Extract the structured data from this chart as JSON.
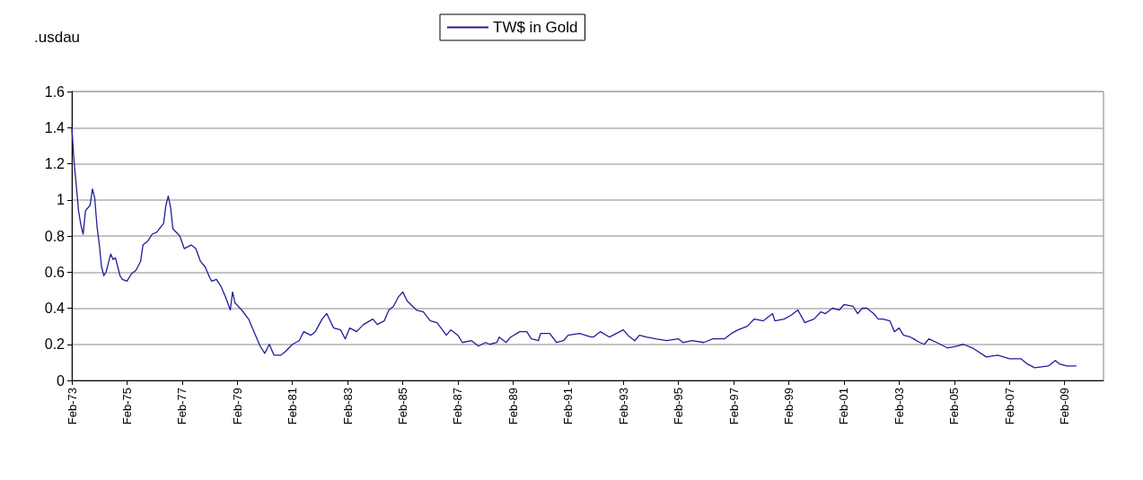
{
  "chart_data": {
    "type": "line",
    "ylabel": ".usdau",
    "legend": "top",
    "grid": "y",
    "marker": "none",
    "line_style": "solid",
    "xlim": [
      "1973-02",
      "2010-07"
    ],
    "xticks": [
      {
        "value": "1973-02",
        "label": "Feb-73"
      },
      {
        "value": "1975-02",
        "label": "Feb-75"
      },
      {
        "value": "1977-02",
        "label": "Feb-77"
      },
      {
        "value": "1979-02",
        "label": "Feb-79"
      },
      {
        "value": "1981-02",
        "label": "Feb-81"
      },
      {
        "value": "1983-02",
        "label": "Feb-83"
      },
      {
        "value": "1985-02",
        "label": "Feb-85"
      },
      {
        "value": "1987-02",
        "label": "Feb-87"
      },
      {
        "value": "1989-02",
        "label": "Feb-89"
      },
      {
        "value": "1991-02",
        "label": "Feb-91"
      },
      {
        "value": "1993-02",
        "label": "Feb-93"
      },
      {
        "value": "1995-02",
        "label": "Feb-95"
      },
      {
        "value": "1997-02",
        "label": "Feb-97"
      },
      {
        "value": "1999-02",
        "label": "Feb-99"
      },
      {
        "value": "2001-02",
        "label": "Feb-01"
      },
      {
        "value": "2003-02",
        "label": "Feb-03"
      },
      {
        "value": "2005-02",
        "label": "Feb-05"
      },
      {
        "value": "2007-02",
        "label": "Feb-07"
      },
      {
        "value": "2009-02",
        "label": "Feb-09"
      }
    ],
    "ylim": [
      0,
      1.6
    ],
    "yticks": [
      0,
      0.2,
      0.4,
      0.6,
      0.8,
      1,
      1.2,
      1.4,
      1.6
    ],
    "series": [
      {
        "name": "TW$ in Gold",
        "color": "#1f1f99",
        "x": [
          "1973-02",
          "1973-03",
          "1973-04",
          "1973-05",
          "1973-06",
          "1973-07",
          "1973-08",
          "1973-10",
          "1973-11",
          "1973-12",
          "1974-01",
          "1974-02",
          "1974-03",
          "1974-04",
          "1974-05",
          "1974-07",
          "1974-08",
          "1974-09",
          "1974-11",
          "1974-12",
          "1975-02",
          "1975-04",
          "1975-06",
          "1975-08",
          "1975-09",
          "1975-11",
          "1976-01",
          "1976-03",
          "1976-06",
          "1976-07",
          "1976-08",
          "1976-09",
          "1976-10",
          "1977-01",
          "1977-03",
          "1977-06",
          "1977-08",
          "1977-10",
          "1977-12",
          "1978-02",
          "1978-03",
          "1978-05",
          "1978-07",
          "1978-09",
          "1978-11",
          "1978-12",
          "1979-01",
          "1979-04",
          "1979-07",
          "1979-10",
          "1979-12",
          "1980-02",
          "1980-04",
          "1980-06",
          "1980-09",
          "1980-11",
          "1981-02",
          "1981-05",
          "1981-07",
          "1981-10",
          "1981-12",
          "1982-03",
          "1982-05",
          "1982-08",
          "1982-11",
          "1983-01",
          "1983-03",
          "1983-06",
          "1983-09",
          "1984-01",
          "1984-03",
          "1984-06",
          "1984-08",
          "1984-10",
          "1984-12",
          "1985-02",
          "1985-04",
          "1985-08",
          "1985-11",
          "1986-02",
          "1986-05",
          "1986-09",
          "1986-11",
          "1987-02",
          "1987-04",
          "1987-08",
          "1987-11",
          "1988-02",
          "1988-04",
          "1988-07",
          "1988-08",
          "1988-11",
          "1989-01",
          "1989-05",
          "1989-08",
          "1989-10",
          "1990-01",
          "1990-02",
          "1990-06",
          "1990-09",
          "1990-12",
          "1991-02",
          "1991-07",
          "1991-12",
          "1992-01",
          "1992-04",
          "1992-08",
          "1993-02",
          "1993-04",
          "1993-07",
          "1993-09",
          "1993-12",
          "1994-04",
          "1994-09",
          "1995-02",
          "1995-04",
          "1995-08",
          "1996-01",
          "1996-05",
          "1996-10",
          "1997-01",
          "1997-04",
          "1997-08",
          "1997-11",
          "1998-03",
          "1998-07",
          "1998-08",
          "1998-12",
          "1999-03",
          "1999-06",
          "1999-09",
          "2000-01",
          "2000-04",
          "2000-06",
          "2000-09",
          "2000-12",
          "2001-02",
          "2001-06",
          "2001-08",
          "2001-10",
          "2001-12",
          "2002-03",
          "2002-05",
          "2002-07",
          "2002-10",
          "2002-12",
          "2003-02",
          "2003-04",
          "2003-07",
          "2003-11",
          "2004-01",
          "2004-03",
          "2004-08",
          "2004-11",
          "2005-03",
          "2005-06",
          "2005-10",
          "2006-04",
          "2006-09",
          "2007-02",
          "2007-07",
          "2007-10",
          "2008-01",
          "2008-07",
          "2008-10",
          "2008-12",
          "2009-03",
          "2009-07"
        ],
        "values": [
          1.4,
          1.22,
          1.08,
          0.94,
          0.86,
          0.81,
          0.94,
          0.97,
          1.06,
          1.01,
          0.85,
          0.75,
          0.63,
          0.58,
          0.6,
          0.7,
          0.67,
          0.68,
          0.58,
          0.56,
          0.55,
          0.59,
          0.61,
          0.66,
          0.75,
          0.77,
          0.81,
          0.82,
          0.87,
          0.97,
          1.02,
          0.96,
          0.84,
          0.8,
          0.73,
          0.75,
          0.73,
          0.66,
          0.63,
          0.57,
          0.55,
          0.56,
          0.52,
          0.46,
          0.39,
          0.49,
          0.43,
          0.39,
          0.34,
          0.25,
          0.19,
          0.15,
          0.2,
          0.14,
          0.14,
          0.16,
          0.2,
          0.22,
          0.27,
          0.25,
          0.27,
          0.34,
          0.37,
          0.29,
          0.28,
          0.23,
          0.29,
          0.27,
          0.31,
          0.34,
          0.31,
          0.33,
          0.39,
          0.41,
          0.46,
          0.49,
          0.44,
          0.39,
          0.38,
          0.33,
          0.32,
          0.25,
          0.28,
          0.25,
          0.21,
          0.22,
          0.19,
          0.21,
          0.2,
          0.21,
          0.24,
          0.21,
          0.24,
          0.27,
          0.27,
          0.23,
          0.22,
          0.26,
          0.26,
          0.21,
          0.22,
          0.25,
          0.26,
          0.24,
          0.24,
          0.27,
          0.24,
          0.28,
          0.25,
          0.22,
          0.25,
          0.24,
          0.23,
          0.22,
          0.23,
          0.21,
          0.22,
          0.21,
          0.23,
          0.23,
          0.26,
          0.28,
          0.3,
          0.34,
          0.33,
          0.37,
          0.33,
          0.34,
          0.36,
          0.39,
          0.32,
          0.34,
          0.38,
          0.37,
          0.4,
          0.39,
          0.42,
          0.41,
          0.37,
          0.4,
          0.4,
          0.37,
          0.34,
          0.34,
          0.33,
          0.27,
          0.29,
          0.25,
          0.24,
          0.21,
          0.2,
          0.23,
          0.2,
          0.18,
          0.19,
          0.2,
          0.18,
          0.13,
          0.14,
          0.12,
          0.12,
          0.09,
          0.07,
          0.08,
          0.11,
          0.09,
          0.08,
          0.08
        ]
      }
    ]
  }
}
